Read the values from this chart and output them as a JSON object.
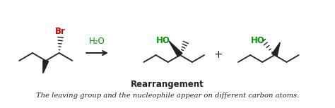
{
  "title": "Rearrangement",
  "subtitle": "The leaving group and the nucleophile appear on different carbon atoms.",
  "h2o_label": "H₂O",
  "br_label": "Br",
  "ho_label": "HO",
  "plus_label": "+",
  "bg_color": "#ffffff",
  "title_fontsize": 8.5,
  "subtitle_fontsize": 7.2,
  "br_color": "#cc0000",
  "ho_color": "#009900",
  "h2o_color": "#009900",
  "arrow_color": "#222222",
  "bond_color": "#222222",
  "text_color": "#222222"
}
